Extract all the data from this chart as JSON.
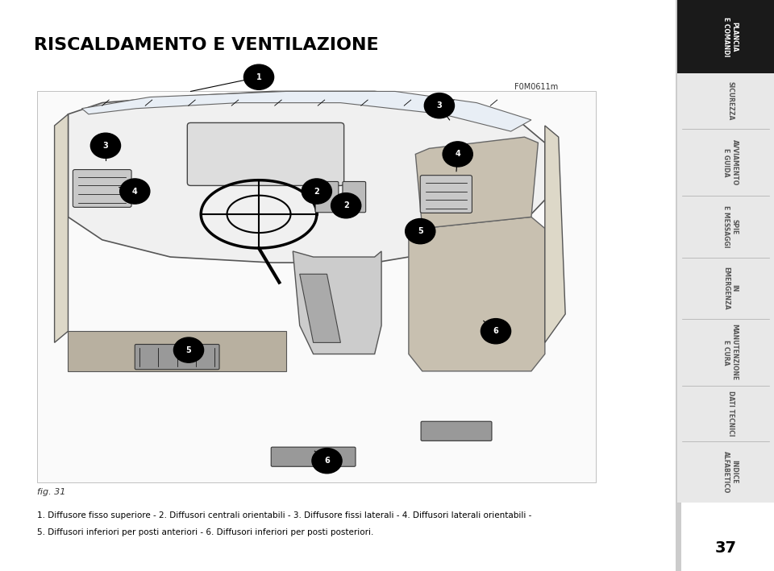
{
  "title": "RISCALDAMENTO E VENTILAZIONE",
  "fig_label": "fig. 31",
  "fig_code": "F0M0611m",
  "description_line1": "1. Diffusore fisso superiore - 2. Diffusori centrali orientabili - 3. Diffusore fissi laterali - 4. Diffusori laterali orientabili -",
  "description_line2": "5. Diffusori inferiori per posti anteriori - 6. Diffusori inferiori per posti posteriori.",
  "page_number": "37",
  "sidebar_items": [
    {
      "text": "PLANCIA\nE COMANDI",
      "active": true
    },
    {
      "text": "SICUREZZA",
      "active": false
    },
    {
      "text": "AVVIAMENTO\nE GUIDA",
      "active": false
    },
    {
      "text": "SPIE\nE MESSAGGI",
      "active": false
    },
    {
      "text": "IN\nEMERGENZA",
      "active": false
    },
    {
      "text": "MANUTENZIONE\nE CURA",
      "active": false
    },
    {
      "text": "DATI TECNICI",
      "active": false
    },
    {
      "text": "INDICE\nALFABETICO",
      "active": false
    }
  ],
  "bg_color": "#ffffff",
  "sidebar_bg": "#1a1a1a",
  "sidebar_inactive_bg": "#e8e8e8",
  "sidebar_active_text": "#ffffff",
  "sidebar_inactive_text": "#555555",
  "title_color": "#000000",
  "desc_color": "#000000",
  "page_num_color": "#000000"
}
